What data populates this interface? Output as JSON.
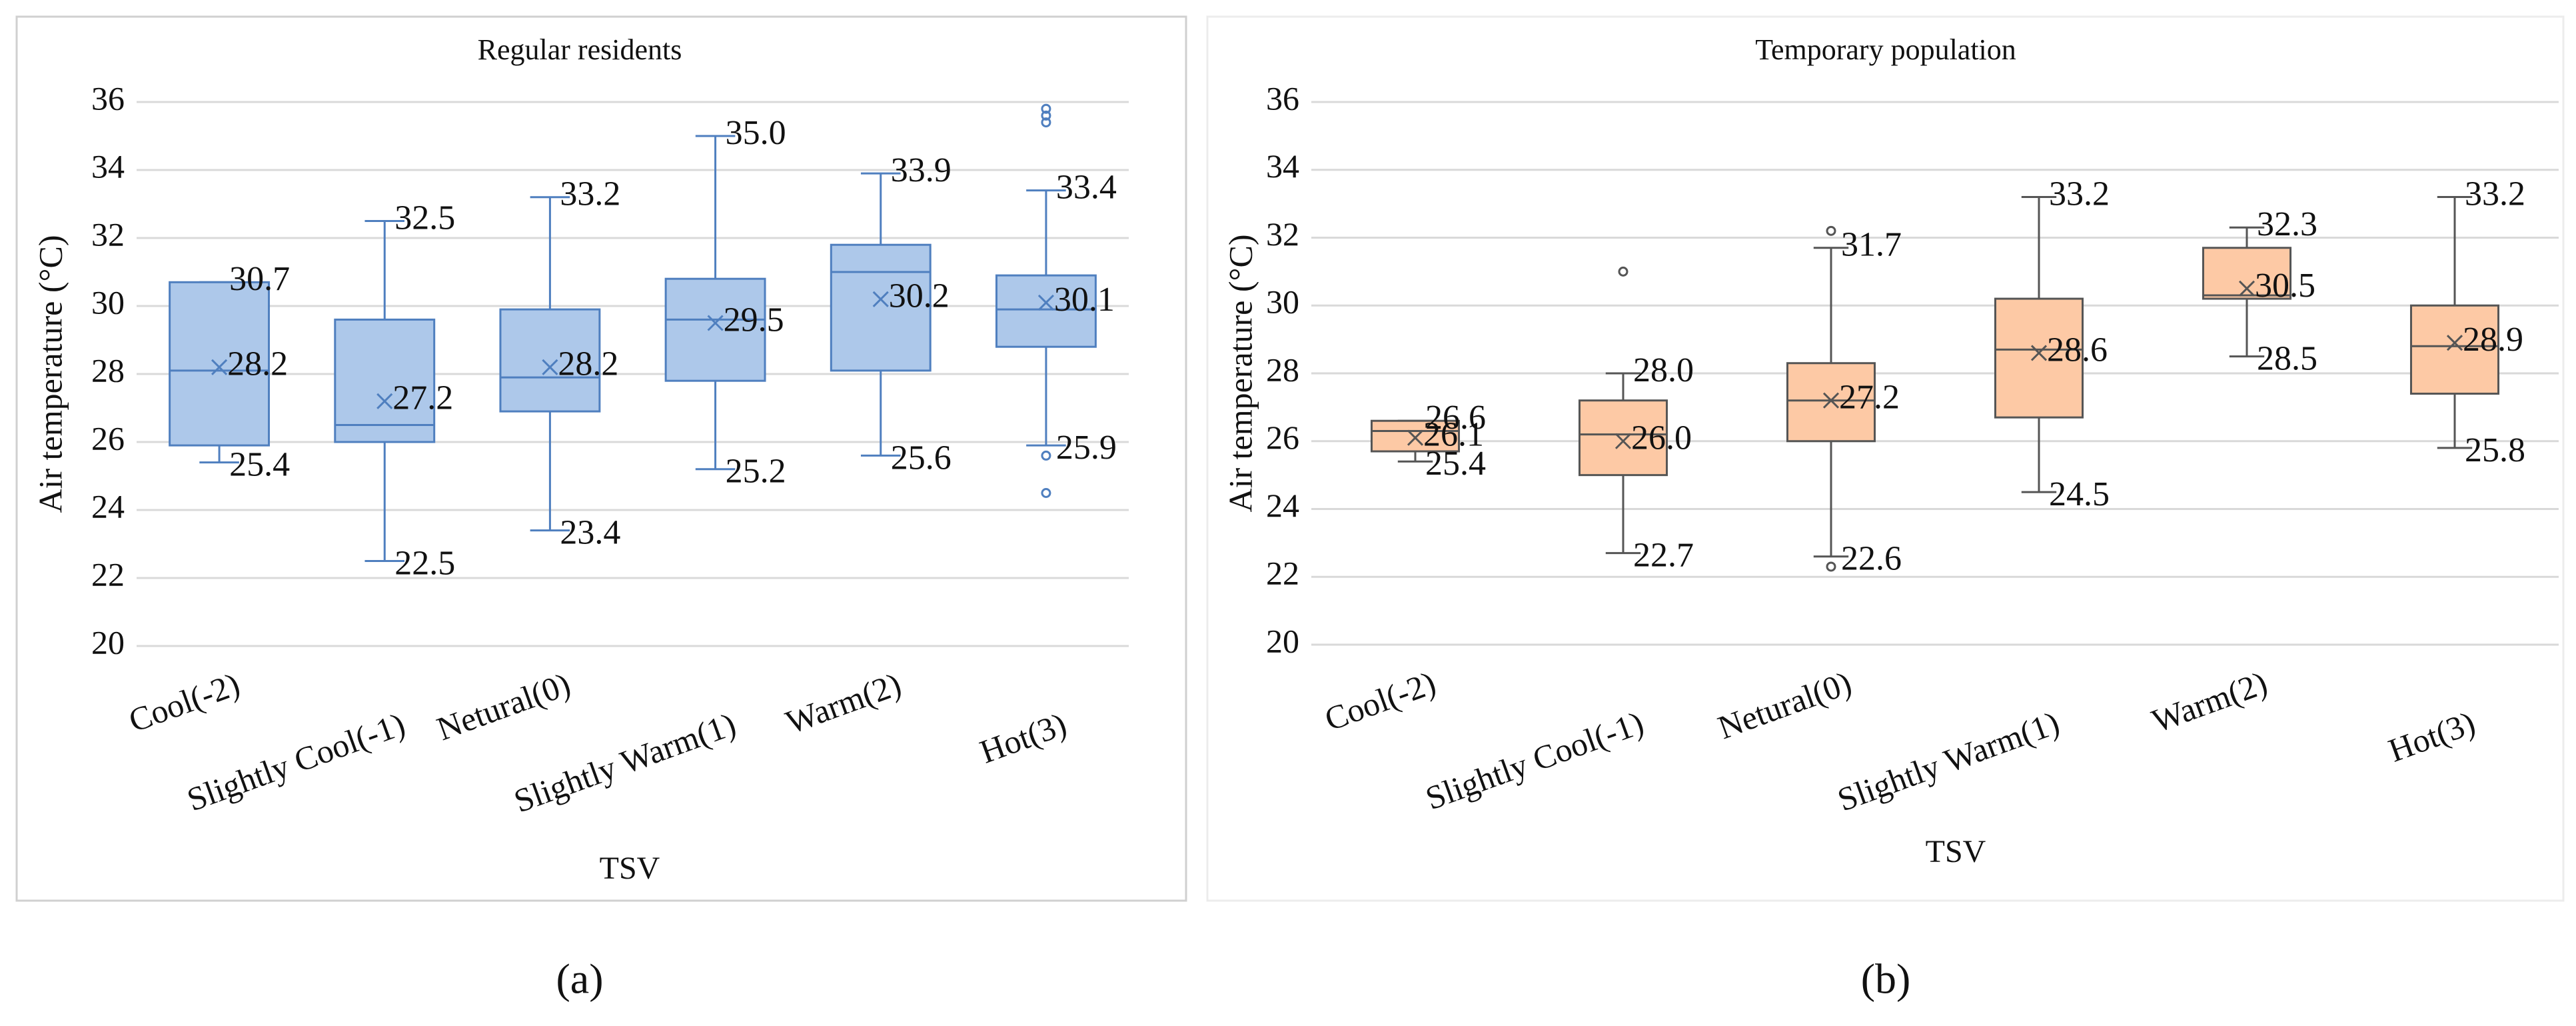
{
  "chart_data": [
    {
      "type": "box",
      "title": "Regular residents",
      "xlabel": "TSV",
      "ylabel": "Air temperature (°C)",
      "caption": "(a)",
      "categories": [
        "Cool(-2)",
        "Slightly Cool(-1)",
        "Netural(0)",
        "Slightly Warm(1)",
        "Warm(2)",
        "Hot(3)"
      ],
      "ylim": [
        20,
        36
      ],
      "yticks": [
        20,
        22,
        24,
        26,
        28,
        30,
        32,
        34,
        36
      ],
      "grid": true,
      "color": "#adc8ea",
      "edge_color": "#4f7fbf",
      "boxes": [
        {
          "min": 25.4,
          "q1": 25.9,
          "median": 28.1,
          "q3": 30.7,
          "max": 30.7,
          "mean": 28.2,
          "outliers": []
        },
        {
          "min": 22.5,
          "q1": 26.0,
          "median": 26.5,
          "q3": 29.6,
          "max": 32.5,
          "mean": 27.2,
          "outliers": []
        },
        {
          "min": 23.4,
          "q1": 26.9,
          "median": 27.9,
          "q3": 29.9,
          "max": 33.2,
          "mean": 28.2,
          "outliers": []
        },
        {
          "min": 25.2,
          "q1": 27.8,
          "median": 29.6,
          "q3": 30.8,
          "max": 35.0,
          "mean": 29.5,
          "outliers": []
        },
        {
          "min": 25.6,
          "q1": 28.1,
          "median": 31.0,
          "q3": 31.8,
          "max": 33.9,
          "mean": 30.2,
          "outliers": []
        },
        {
          "min": 25.9,
          "q1": 28.8,
          "median": 29.9,
          "q3": 30.9,
          "max": 33.4,
          "mean": 30.1,
          "outliers": [
            35.8,
            35.6,
            35.4,
            25.6,
            24.5
          ]
        }
      ],
      "value_labels": [
        {
          "max": "30.7",
          "mean": "28.2",
          "min": "25.4"
        },
        {
          "max": "32.5",
          "mean": "27.2",
          "min": "22.5"
        },
        {
          "max": "33.2",
          "mean": "28.2",
          "min": "23.4"
        },
        {
          "max": "35.0",
          "mean": "29.5",
          "min": "25.2"
        },
        {
          "max": "33.9",
          "mean": "30.2",
          "min": "25.6"
        },
        {
          "max": "33.4",
          "mean": "30.1",
          "min": "25.9"
        }
      ]
    },
    {
      "type": "box",
      "title": "Temporary population",
      "xlabel": "TSV",
      "ylabel": "Air temperature (°C)",
      "caption": "(b)",
      "categories": [
        "Cool(-2)",
        "Slightly Cool(-1)",
        "Netural(0)",
        "Slightly Warm(1)",
        "Warm(2)",
        "Hot(3)"
      ],
      "ylim": [
        20,
        36
      ],
      "yticks": [
        20,
        22,
        24,
        26,
        28,
        30,
        32,
        34,
        36
      ],
      "grid": true,
      "color": "#fdc9a5",
      "edge_color": "#555555",
      "boxes": [
        {
          "min": 25.4,
          "q1": 25.7,
          "median": 26.3,
          "q3": 26.6,
          "max": 26.6,
          "mean": 26.1,
          "outliers": []
        },
        {
          "min": 22.7,
          "q1": 25.0,
          "median": 26.2,
          "q3": 27.2,
          "max": 28.0,
          "mean": 26.0,
          "outliers": [
            31.0
          ]
        },
        {
          "min": 22.6,
          "q1": 26.0,
          "median": 27.2,
          "q3": 28.3,
          "max": 31.7,
          "mean": 27.2,
          "outliers": [
            32.2,
            22.3
          ]
        },
        {
          "min": 24.5,
          "q1": 26.7,
          "median": 28.7,
          "q3": 30.2,
          "max": 33.2,
          "mean": 28.6,
          "outliers": []
        },
        {
          "min": 28.5,
          "q1": 30.2,
          "median": 30.3,
          "q3": 31.7,
          "max": 32.3,
          "mean": 30.5,
          "outliers": []
        },
        {
          "min": 25.8,
          "q1": 27.4,
          "median": 28.8,
          "q3": 30.0,
          "max": 33.2,
          "mean": 28.9,
          "outliers": []
        }
      ],
      "value_labels": [
        {
          "max": "26.6",
          "mean": "26.1",
          "min": "25.4"
        },
        {
          "max": "28.0",
          "mean": "26.0",
          "min": "22.7"
        },
        {
          "max": "31.7",
          "mean": "27.2",
          "min": "22.6"
        },
        {
          "max": "33.2",
          "mean": "28.6",
          "min": "24.5"
        },
        {
          "max": "32.3",
          "mean": "30.5",
          "min": "28.5"
        },
        {
          "max": "33.2",
          "mean": "28.9",
          "min": "25.8"
        }
      ]
    }
  ]
}
